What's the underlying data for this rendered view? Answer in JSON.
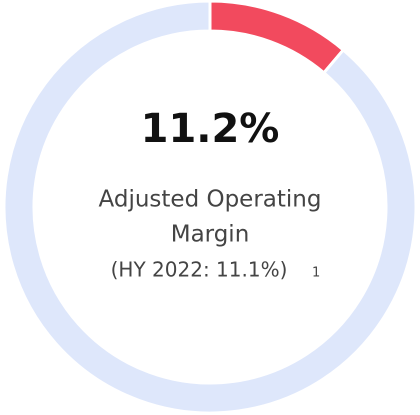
{
  "chart_data": {
    "type": "pie",
    "donut": true,
    "categories": [
      null,
      null
    ],
    "values": [
      11.2,
      88.8
    ],
    "value_labels": [
      "11.2%",
      null
    ],
    "colors": [
      "#f24a5e",
      "#dee7fb"
    ],
    "label": "Adjusted Operating Margin",
    "label_lines": [
      "Adjusted Operating",
      "Margin"
    ],
    "annotation": "(HY 2022:  11.1%)",
    "footnote": "1"
  }
}
